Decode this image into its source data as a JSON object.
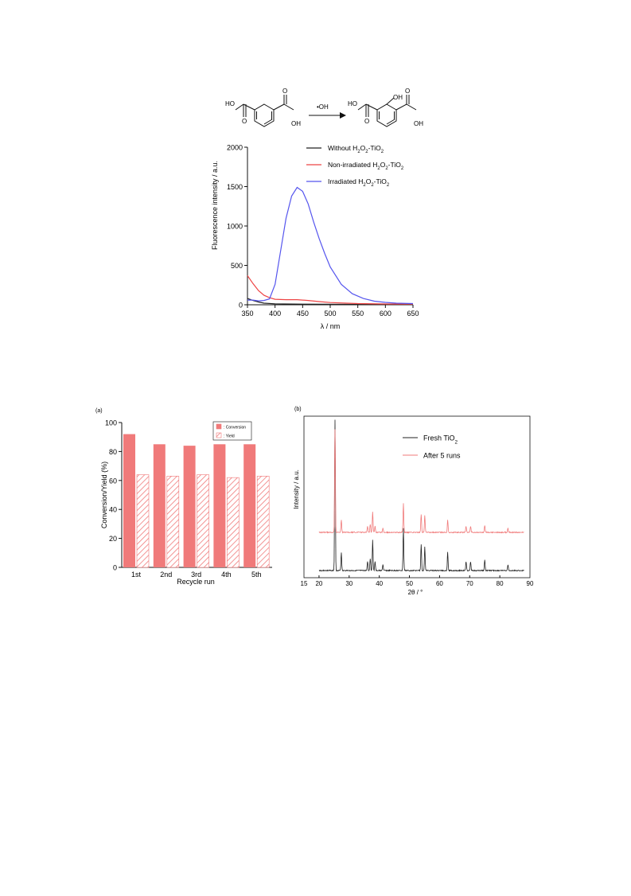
{
  "reaction": {
    "reactant_labels": [
      "HO",
      "OH"
    ],
    "product_labels": [
      "HO",
      "OH",
      "OH"
    ],
    "arrow_label": "•OH"
  },
  "chart_data": [
    {
      "id": "fluorescence",
      "type": "line",
      "xlabel": "λ / nm",
      "ylabel": "Fluorescence intensity / a.u.",
      "xlim": [
        350,
        650
      ],
      "ylim": [
        0,
        2000
      ],
      "xticks": [
        350,
        400,
        450,
        500,
        550,
        600,
        650
      ],
      "yticks": [
        0,
        500,
        1000,
        1500,
        2000
      ],
      "legend_position": "top-right",
      "series": [
        {
          "name": "Without H2O2-TiO2",
          "color": "#222222",
          "x": [
            350,
            360,
            370,
            380,
            400,
            450,
            500,
            550,
            600,
            650
          ],
          "y": [
            80,
            55,
            35,
            20,
            12,
            8,
            6,
            5,
            4,
            4
          ]
        },
        {
          "name": "Non-irradiated H2O2-TiO2",
          "color": "#ee4444",
          "x": [
            350,
            360,
            370,
            380,
            390,
            400,
            420,
            440,
            460,
            480,
            500,
            550,
            600,
            650
          ],
          "y": [
            370,
            270,
            180,
            120,
            90,
            70,
            65,
            65,
            55,
            40,
            28,
            15,
            10,
            8
          ]
        },
        {
          "name": "Irradiated H2O2-TiO2",
          "color": "#5555ee",
          "x": [
            350,
            360,
            370,
            380,
            390,
            400,
            410,
            420,
            430,
            440,
            450,
            460,
            470,
            480,
            490,
            500,
            520,
            540,
            560,
            580,
            600,
            620,
            650
          ],
          "y": [
            60,
            60,
            50,
            55,
            75,
            260,
            680,
            1100,
            1380,
            1490,
            1440,
            1280,
            1050,
            840,
            650,
            480,
            260,
            140,
            80,
            45,
            30,
            20,
            15
          ]
        }
      ]
    },
    {
      "id": "recycle",
      "type": "bar",
      "panel_label": "(a)",
      "xlabel": "Recycle run",
      "ylabel": "Conversion/Yield (%)",
      "categories": [
        "1st",
        "2nd",
        "3rd",
        "4th",
        "5th"
      ],
      "ylim": [
        0,
        100
      ],
      "yticks": [
        0,
        20,
        40,
        60,
        80,
        100
      ],
      "legend_position": "top-right",
      "series": [
        {
          "name": ": Conversion",
          "color": "#f07a7a",
          "pattern": "solid",
          "values": [
            92,
            85,
            84,
            85,
            85
          ]
        },
        {
          "name": ": Yield",
          "color": "#f07a7a",
          "pattern": "hatched",
          "values": [
            64,
            63,
            64,
            62,
            63
          ]
        }
      ]
    },
    {
      "id": "xrd",
      "type": "line",
      "panel_label": "(b)",
      "xlabel": "2θ / °",
      "ylabel": "Intensity / a.u.",
      "xlim": [
        15,
        90
      ],
      "xticks": [
        15,
        20,
        30,
        40,
        50,
        60,
        70,
        80,
        90
      ],
      "legend_position": "top-center",
      "series": [
        {
          "name": "Fresh TiO2",
          "color": "#222222"
        },
        {
          "name": "After 5 runs",
          "color": "#f07a7a"
        }
      ],
      "peaks_2theta": [
        {
          "x": 25.3,
          "relative_intensity": 1.0
        },
        {
          "x": 27.4,
          "relative_intensity": 0.12
        },
        {
          "x": 36.1,
          "relative_intensity": 0.06
        },
        {
          "x": 37.0,
          "relative_intensity": 0.08
        },
        {
          "x": 37.8,
          "relative_intensity": 0.2
        },
        {
          "x": 38.6,
          "relative_intensity": 0.06
        },
        {
          "x": 41.2,
          "relative_intensity": 0.04
        },
        {
          "x": 48.0,
          "relative_intensity": 0.28
        },
        {
          "x": 53.9,
          "relative_intensity": 0.17
        },
        {
          "x": 55.1,
          "relative_intensity": 0.16
        },
        {
          "x": 62.7,
          "relative_intensity": 0.12
        },
        {
          "x": 68.8,
          "relative_intensity": 0.06
        },
        {
          "x": 70.3,
          "relative_intensity": 0.06
        },
        {
          "x": 75.0,
          "relative_intensity": 0.07
        },
        {
          "x": 82.7,
          "relative_intensity": 0.04
        }
      ]
    }
  ]
}
